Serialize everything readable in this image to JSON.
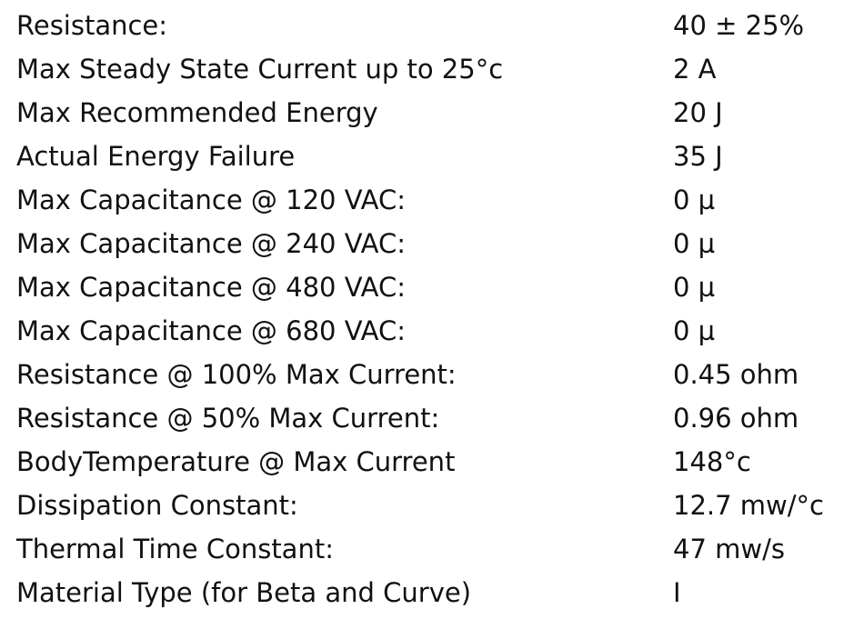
{
  "table": {
    "rows": [
      [
        "Resistance:",
        "40 ± 25%"
      ],
      [
        "Max Steady State Current up to 25°c",
        "2 A"
      ],
      [
        "Max Recommended Energy",
        "20 J"
      ],
      [
        "Actual Energy Failure",
        "35 J"
      ],
      [
        "Max Capacitance @ 120 VAC:",
        "0 µ"
      ],
      [
        "Max Capacitance @ 240 VAC:",
        "0 µ"
      ],
      [
        "Max Capacitance @ 480 VAC:",
        "0 µ"
      ],
      [
        "Max Capacitance @ 680 VAC:",
        "0 µ"
      ],
      [
        "Resistance @ 100% Max Current:",
        "0.45 ohm"
      ],
      [
        "Resistance @ 50% Max Current:",
        "0.96 ohm"
      ],
      [
        "BodyTemperature @ Max Current",
        "148°c"
      ],
      [
        "Dissipation Constant:",
        "12.7 mw/°c"
      ],
      [
        "Thermal Time Constant:",
        "47 mw/s"
      ],
      [
        "Material Type (for Beta and Curve)",
        "I"
      ]
    ]
  }
}
